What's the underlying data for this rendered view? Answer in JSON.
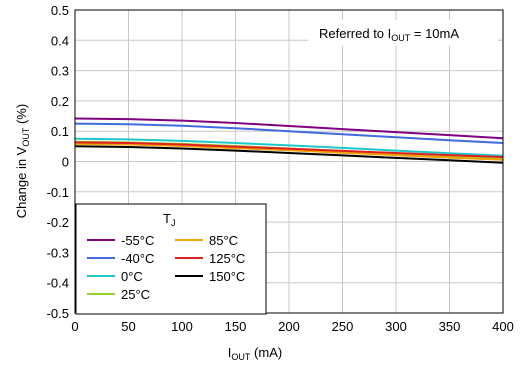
{
  "chart_data": {
    "type": "line",
    "xlabel": {
      "main": "I",
      "sub": "OUT",
      "rest": " (mA)"
    },
    "ylabel": {
      "main": "Change in V",
      "sub": "OUT",
      "rest": " (%)"
    },
    "annotation": {
      "main": "Referred to I",
      "sub": "OUT",
      "rest": " = 10mA"
    },
    "xlim": [
      0,
      400
    ],
    "ylim": [
      -0.5,
      0.5
    ],
    "x_ticks": [
      0,
      50,
      100,
      150,
      200,
      250,
      300,
      350,
      400
    ],
    "x_tick_labels": [
      "0",
      "50",
      "100",
      "150",
      "200",
      "250",
      "300",
      "350",
      "400"
    ],
    "y_ticks": [
      0.5,
      0.4,
      0.3,
      0.2,
      0.1,
      0,
      -0.1,
      -0.2,
      -0.3,
      -0.4,
      -0.5
    ],
    "y_tick_labels": [
      "0.5",
      "0.4",
      "0.3",
      "0.2",
      "0.1",
      "0",
      "-0.1",
      "-0.2",
      "-0.3",
      "-0.4",
      "-0.5"
    ],
    "grid": true,
    "legend": {
      "title_main": "T",
      "title_sub": "J",
      "placement": "bottom-left"
    },
    "x": [
      0,
      50,
      100,
      150,
      200,
      250,
      300,
      350,
      400
    ],
    "series": [
      {
        "name": "-55°C",
        "color": "#800080",
        "values": [
          0.142,
          0.14,
          0.135,
          0.127,
          0.117,
          0.107,
          0.097,
          0.087,
          0.077
        ]
      },
      {
        "name": "-40°C",
        "color": "#4169e1",
        "values": [
          0.125,
          0.123,
          0.118,
          0.11,
          0.1,
          0.09,
          0.08,
          0.07,
          0.061
        ]
      },
      {
        "name": "0°C",
        "color": "#1ec8c8",
        "values": [
          0.075,
          0.073,
          0.068,
          0.061,
          0.053,
          0.045,
          0.036,
          0.027,
          0.019
        ]
      },
      {
        "name": "25°C",
        "color": "#9acd32",
        "values": [
          0.065,
          0.063,
          0.058,
          0.051,
          0.043,
          0.035,
          0.026,
          0.018,
          0.01
        ]
      },
      {
        "name": "85°C",
        "color": "#f0a000",
        "values": [
          0.058,
          0.056,
          0.051,
          0.044,
          0.037,
          0.029,
          0.021,
          0.013,
          0.006
        ]
      },
      {
        "name": "125°C",
        "color": "#e02020",
        "values": [
          0.063,
          0.061,
          0.056,
          0.049,
          0.042,
          0.035,
          0.028,
          0.021,
          0.015
        ]
      },
      {
        "name": "150°C",
        "color": "#000000",
        "values": [
          0.05,
          0.048,
          0.043,
          0.036,
          0.028,
          0.02,
          0.012,
          0.004,
          -0.004
        ]
      }
    ]
  }
}
